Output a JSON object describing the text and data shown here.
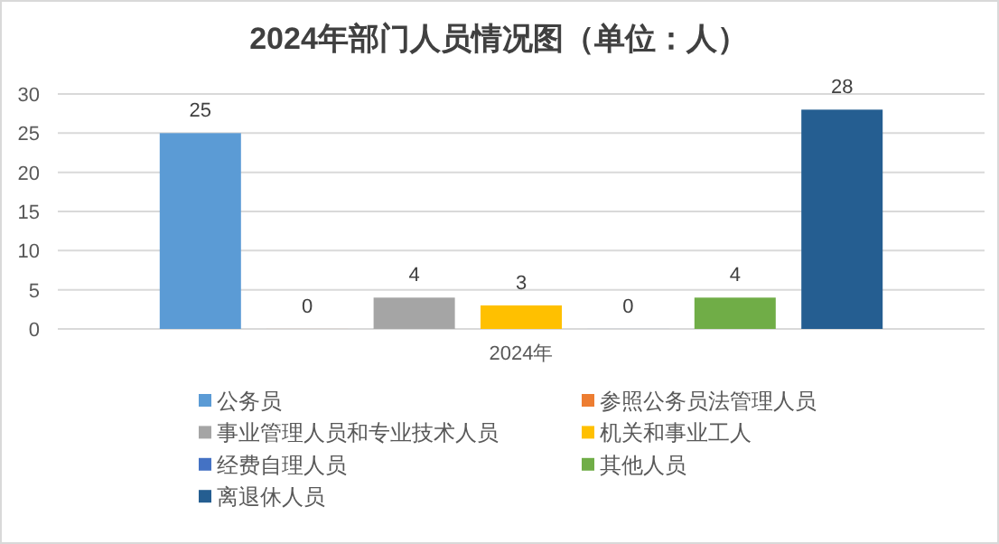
{
  "chart_data": {
    "type": "bar",
    "title": "2024年部门人员情况图（单位：人）",
    "categories": [
      "2024年"
    ],
    "series": [
      {
        "name": "公务员",
        "color": "#5b9bd5",
        "values": [
          25
        ]
      },
      {
        "name": "参照公务员法管理人员",
        "color": "#ed7d31",
        "values": [
          0
        ]
      },
      {
        "name": "事业管理人员和专业技术人员",
        "color": "#a5a5a5",
        "values": [
          4
        ]
      },
      {
        "name": "机关和事业工人",
        "color": "#ffc000",
        "values": [
          3
        ]
      },
      {
        "name": "经费自理人员",
        "color": "#4472c4",
        "values": [
          0
        ]
      },
      {
        "name": "其他人员",
        "color": "#70ad47",
        "values": [
          4
        ]
      },
      {
        "name": "离退休人员",
        "color": "#255e91",
        "values": [
          28
        ]
      }
    ],
    "ylim": [
      0,
      30
    ],
    "yticks": [
      0,
      5,
      10,
      15,
      20,
      25,
      30
    ],
    "grid": "y",
    "legend": "bottom",
    "data_labels": true
  }
}
